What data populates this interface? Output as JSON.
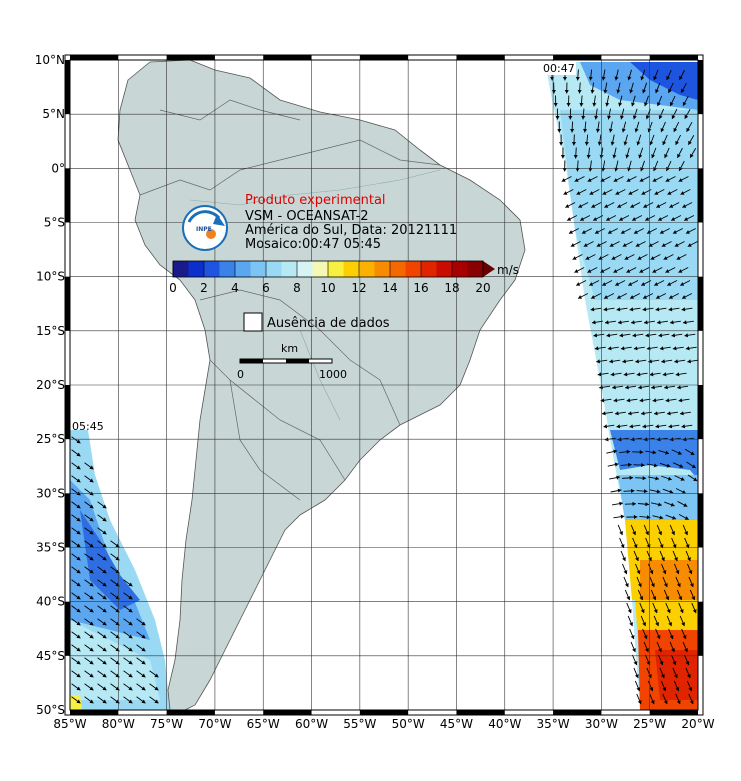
{
  "map": {
    "title": "Produto experimental",
    "subtitle_1": "VSM - OCEANSAT-2",
    "subtitle_2": "América do Sul, Data: 20121111",
    "subtitle_3": "Mosaico:00:47 05:45",
    "pass_label_east": "00:47",
    "pass_label_west": "05:45",
    "logo_text": "INPE",
    "no_data_label": "Ausência de dados",
    "scale_unit": "km",
    "scale_start": "0",
    "scale_end": "1000",
    "lat_ticks": [
      "10°N",
      "5°N",
      "0°",
      "5°S",
      "10°S",
      "15°S",
      "20°S",
      "25°S",
      "30°S",
      "35°S",
      "40°S",
      "45°S",
      "50°S"
    ],
    "lon_ticks": [
      "85°W",
      "80°W",
      "75°W",
      "70°W",
      "65°W",
      "60°W",
      "55°W",
      "50°W",
      "45°W",
      "40°W",
      "35°W",
      "30°W",
      "25°W",
      "20°W"
    ],
    "extent": {
      "lon_min": -85,
      "lon_max": -20,
      "lat_min": -50,
      "lat_max": 10
    }
  },
  "colorbar": {
    "unit": "m/s",
    "ticks": [
      "0",
      "2",
      "4",
      "6",
      "8",
      "10",
      "12",
      "14",
      "16",
      "18",
      "20"
    ],
    "colors": [
      "#1a1a8c",
      "#0b2ecc",
      "#1e55e0",
      "#3a82e8",
      "#5aa6f0",
      "#7cc4f4",
      "#9ad9f4",
      "#b6e9f4",
      "#d6f4f4",
      "#f4f8b4",
      "#f8f040",
      "#fcd000",
      "#fcb000",
      "#f88c00",
      "#f46800",
      "#f04400",
      "#e02400",
      "#c80c00",
      "#a80000",
      "#880000"
    ]
  },
  "colors": {
    "land": "#c8d7d6",
    "grid": "#333333",
    "wind_low": "#4a8fe0",
    "wind_high": "#f0a000"
  }
}
